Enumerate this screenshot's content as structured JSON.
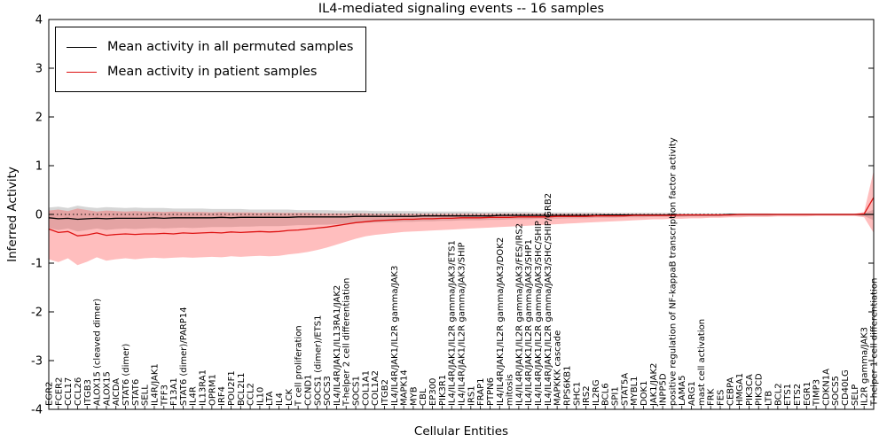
{
  "chart_data": {
    "type": "line",
    "title": "IL4-mediated signaling events -- 16 samples",
    "xlabel": "Cellular Entities",
    "ylabel": "Inferred Activity",
    "ylim": [
      -4,
      4
    ],
    "yticks": [
      "4",
      "3",
      "2",
      "1",
      "0",
      "-1",
      "-2",
      "-3",
      "-4"
    ],
    "grid": false,
    "zero_line": "dotted",
    "legend_position": "upper-left",
    "categories": [
      "EGR2",
      "FCER2",
      "CCL17",
      "CCL26",
      "ITGB3",
      "ALOX15 (cleaved dimer)",
      "ALOX15",
      "AICDA",
      "STAT6 (dimer)",
      "STAT6",
      "SELL",
      "IL4R/JAK1",
      "TFF3",
      "F13A1",
      "STAT6 (dimer)/PARP14",
      "IL4R",
      "IL13RA1",
      "OPRM1",
      "IRF4",
      "POU2F1",
      "BCL2L1",
      "CCL2",
      "IL10",
      "LTA",
      "IL4",
      "LCK",
      "T cell proliferation",
      "CCND1",
      "SOCS1 (dimer)/ETS1",
      "SOCS3",
      "IL4/IL4R/JAK1/IL13RA1/JAK2",
      "T-helper 2 cell differentiation",
      "SOCS1",
      "COL1A1",
      "COL1A2",
      "ITGB2",
      "IL4/IL4R/JAK1/IL2R gamma/JAK3",
      "MAPK14",
      "MYB",
      "CBL",
      "EP300",
      "PIK3R1",
      "IL4/IL4R/JAK1/IL2R gamma/JAK3/ETS1",
      "IL4/IL4R/JAK1/IL2R gamma/JAK3/SHIP",
      "IRS1",
      "FRAP1",
      "PTPN6",
      "IL4/IL4R/JAK1/IL2R gamma/JAK3/DOK2",
      "mitosis",
      "IL4/IL4R/JAK1/IL2R gamma/JAK3/FES/IRS2",
      "IL4/IL4R/JAK1/IL2R gamma/JAK3/SHP1",
      "IL4/IL4R/JAK1/IL2R gamma/JAK3/SHC/SHIP",
      "IL4/IL4R/JAK1/IL2R gamma/JAK3/SHC/SHIP/GRB2",
      "MAPKKK cascade",
      "RPS6KB1",
      "SHC1",
      "IRS2",
      "IL2RG",
      "BCL6",
      "SPI1",
      "STAT5A",
      "MYBL1",
      "DOK1",
      "JAK1/JAK2",
      "INPP5D",
      "positive regulation of NF-kappaB transcription factor activity",
      "LAMA5",
      "ARG1",
      "mast cell activation",
      "FRK",
      "FES",
      "CEBPA",
      "HMGA1",
      "PIK3CA",
      "PIK3CD",
      "LTB",
      "BCL2",
      "ETS1",
      "ETS2",
      "EGR1",
      "TIMP3",
      "CDKN1A",
      "SOCS5",
      "CD40LG",
      "SELP",
      "IL2R gamma/JAK3",
      "T-helper 1 cell differentiation"
    ],
    "series": [
      {
        "name": "Mean activity in all permuted samples",
        "color": "#000000",
        "band_color": "#999999",
        "band_opacity": 0.4,
        "values": [
          -0.07,
          -0.09,
          -0.08,
          -0.1,
          -0.09,
          -0.08,
          -0.09,
          -0.08,
          -0.08,
          -0.08,
          -0.08,
          -0.07,
          -0.08,
          -0.07,
          -0.07,
          -0.07,
          -0.07,
          -0.07,
          -0.06,
          -0.07,
          -0.06,
          -0.06,
          -0.06,
          -0.06,
          -0.06,
          -0.06,
          -0.05,
          -0.05,
          -0.05,
          -0.05,
          -0.05,
          -0.05,
          -0.04,
          -0.04,
          -0.04,
          -0.04,
          -0.04,
          -0.04,
          -0.04,
          -0.03,
          -0.03,
          -0.03,
          -0.03,
          -0.03,
          -0.03,
          -0.03,
          -0.03,
          -0.02,
          -0.02,
          -0.02,
          -0.02,
          -0.02,
          -0.02,
          -0.02,
          -0.02,
          -0.02,
          -0.02,
          -0.02,
          -0.01,
          -0.01,
          -0.01,
          -0.01,
          -0.01,
          -0.01,
          -0.01,
          -0.01,
          -0.01,
          -0.01,
          -0.01,
          -0.01,
          -0.01,
          0.0,
          0.0,
          0.0,
          0.0,
          0.0,
          0.0,
          0.0,
          0.0,
          0.0,
          0.0,
          0.0,
          0.0,
          0.0,
          0.0,
          0.0,
          0.0
        ],
        "band_upper": [
          0.14,
          0.16,
          0.13,
          0.18,
          0.15,
          0.13,
          0.15,
          0.14,
          0.13,
          0.14,
          0.13,
          0.13,
          0.13,
          0.12,
          0.12,
          0.12,
          0.12,
          0.11,
          0.11,
          0.11,
          0.11,
          0.1,
          0.1,
          0.1,
          0.1,
          0.1,
          0.09,
          0.09,
          0.09,
          0.09,
          0.08,
          0.08,
          0.08,
          0.08,
          0.07,
          0.07,
          0.07,
          0.07,
          0.07,
          0.06,
          0.06,
          0.06,
          0.06,
          0.06,
          0.06,
          0.05,
          0.05,
          0.05,
          0.05,
          0.05,
          0.05,
          0.04,
          0.04,
          0.04,
          0.04,
          0.04,
          0.04,
          0.04,
          0.03,
          0.03,
          0.03,
          0.03,
          0.03,
          0.03,
          0.03,
          0.03,
          0.02,
          0.02,
          0.02,
          0.02,
          0.02,
          0.02,
          0.02,
          0.02,
          0.02,
          0.02,
          0.01,
          0.01,
          0.01,
          0.01,
          0.01,
          0.01,
          0.01,
          0.01,
          0.01,
          0.02,
          0.1
        ],
        "band_lower": [
          -0.28,
          -0.32,
          -0.29,
          -0.35,
          -0.32,
          -0.29,
          -0.32,
          -0.3,
          -0.29,
          -0.3,
          -0.29,
          -0.28,
          -0.29,
          -0.28,
          -0.27,
          -0.28,
          -0.27,
          -0.26,
          -0.26,
          -0.26,
          -0.25,
          -0.25,
          -0.24,
          -0.24,
          -0.24,
          -0.23,
          -0.22,
          -0.22,
          -0.21,
          -0.21,
          -0.2,
          -0.19,
          -0.18,
          -0.17,
          -0.17,
          -0.16,
          -0.16,
          -0.15,
          -0.15,
          -0.14,
          -0.14,
          -0.13,
          -0.13,
          -0.12,
          -0.12,
          -0.12,
          -0.11,
          -0.11,
          -0.1,
          -0.1,
          -0.1,
          -0.09,
          -0.09,
          -0.09,
          -0.08,
          -0.08,
          -0.08,
          -0.07,
          -0.07,
          -0.07,
          -0.06,
          -0.06,
          -0.06,
          -0.05,
          -0.05,
          -0.05,
          -0.05,
          -0.04,
          -0.04,
          -0.04,
          -0.04,
          -0.03,
          -0.03,
          -0.03,
          -0.03,
          -0.03,
          -0.02,
          -0.02,
          -0.02,
          -0.02,
          -0.02,
          -0.02,
          -0.02,
          -0.02,
          -0.02,
          -0.03,
          -0.12
        ]
      },
      {
        "name": "Mean activity in patient samples",
        "color": "#dd1111",
        "band_color": "#ff4444",
        "band_opacity": 0.35,
        "values": [
          -0.3,
          -0.37,
          -0.35,
          -0.44,
          -0.42,
          -0.38,
          -0.43,
          -0.41,
          -0.4,
          -0.41,
          -0.4,
          -0.4,
          -0.39,
          -0.4,
          -0.38,
          -0.39,
          -0.38,
          -0.37,
          -0.38,
          -0.36,
          -0.37,
          -0.36,
          -0.35,
          -0.36,
          -0.35,
          -0.33,
          -0.32,
          -0.3,
          -0.28,
          -0.26,
          -0.23,
          -0.2,
          -0.17,
          -0.15,
          -0.13,
          -0.12,
          -0.11,
          -0.1,
          -0.1,
          -0.09,
          -0.09,
          -0.08,
          -0.08,
          -0.07,
          -0.07,
          -0.07,
          -0.06,
          -0.06,
          -0.06,
          -0.05,
          -0.05,
          -0.05,
          -0.05,
          -0.04,
          -0.04,
          -0.04,
          -0.04,
          -0.03,
          -0.03,
          -0.03,
          -0.03,
          -0.02,
          -0.02,
          -0.02,
          -0.02,
          -0.02,
          -0.01,
          -0.01,
          -0.01,
          -0.01,
          -0.01,
          -0.01,
          0.0,
          0.0,
          0.0,
          0.0,
          0.0,
          0.0,
          0.0,
          0.0,
          0.0,
          0.0,
          0.0,
          0.0,
          0.0,
          0.01,
          0.35
        ],
        "band_upper": [
          0.08,
          0.1,
          0.07,
          0.12,
          0.09,
          0.06,
          0.08,
          0.07,
          0.06,
          0.07,
          0.06,
          0.06,
          0.05,
          0.06,
          0.05,
          0.05,
          0.05,
          0.04,
          0.05,
          0.04,
          0.04,
          0.04,
          0.03,
          0.04,
          0.03,
          0.03,
          0.03,
          0.03,
          0.02,
          0.02,
          0.02,
          0.02,
          0.02,
          0.02,
          0.01,
          0.01,
          0.01,
          0.01,
          0.01,
          0.01,
          0.01,
          0.01,
          0.01,
          0.01,
          0.01,
          0.01,
          0.01,
          0.01,
          0.01,
          0.01,
          0.01,
          0.01,
          0.01,
          0.01,
          0.01,
          0.01,
          0.01,
          0.01,
          0.01,
          0.01,
          0.01,
          0.01,
          0.01,
          0.01,
          0.01,
          0.01,
          0.01,
          0.01,
          0.01,
          0.01,
          0.01,
          0.01,
          0.01,
          0.01,
          0.01,
          0.01,
          0.01,
          0.01,
          0.01,
          0.01,
          0.01,
          0.01,
          0.01,
          0.01,
          0.01,
          0.05,
          0.9
        ],
        "band_lower": [
          -0.92,
          -0.98,
          -0.9,
          -1.04,
          -0.97,
          -0.88,
          -0.95,
          -0.92,
          -0.9,
          -0.92,
          -0.9,
          -0.89,
          -0.9,
          -0.89,
          -0.88,
          -0.89,
          -0.88,
          -0.87,
          -0.88,
          -0.86,
          -0.87,
          -0.86,
          -0.85,
          -0.86,
          -0.85,
          -0.82,
          -0.8,
          -0.77,
          -0.73,
          -0.68,
          -0.62,
          -0.56,
          -0.5,
          -0.45,
          -0.42,
          -0.4,
          -0.38,
          -0.36,
          -0.35,
          -0.34,
          -0.33,
          -0.32,
          -0.31,
          -0.3,
          -0.29,
          -0.28,
          -0.27,
          -0.26,
          -0.25,
          -0.24,
          -0.23,
          -0.22,
          -0.21,
          -0.2,
          -0.19,
          -0.18,
          -0.17,
          -0.16,
          -0.15,
          -0.14,
          -0.13,
          -0.12,
          -0.11,
          -0.1,
          -0.1,
          -0.09,
          -0.09,
          -0.08,
          -0.08,
          -0.07,
          -0.07,
          -0.06,
          -0.06,
          -0.05,
          -0.05,
          -0.05,
          -0.04,
          -0.04,
          -0.04,
          -0.04,
          -0.03,
          -0.03,
          -0.03,
          -0.03,
          -0.03,
          -0.06,
          -0.38
        ]
      }
    ]
  }
}
